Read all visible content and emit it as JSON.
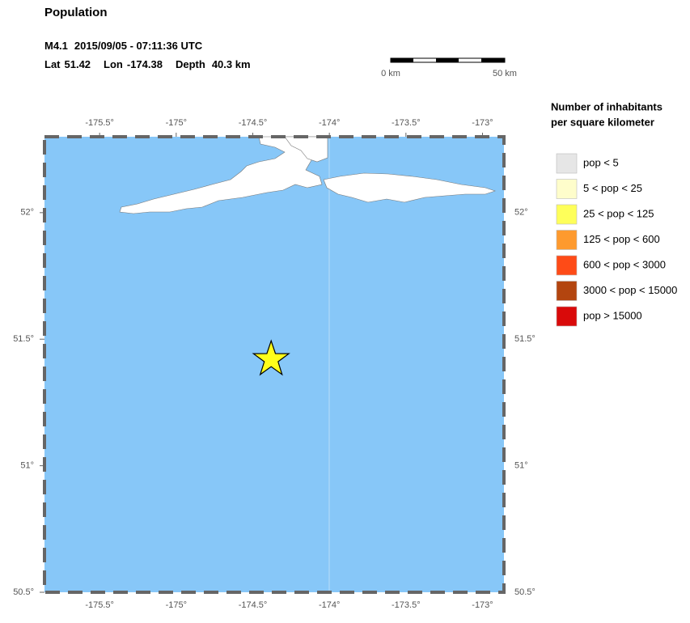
{
  "header": {
    "title": "Population",
    "magnitude": "M4.1",
    "datetime": "2015/09/05 - 07:11:36 UTC",
    "lat_label": "Lat",
    "lon_label": "Lon",
    "depth_label": "Depth",
    "depth": "40.3 km"
  },
  "epicenter": {
    "lat": 51.42,
    "lon": -174.38
  },
  "scale_bar": {
    "start": "0 km",
    "end": "50 km"
  },
  "map": {
    "xlim": [
      -175.86,
      -172.86
    ],
    "ylim": [
      50.5,
      52.3
    ],
    "xticks": [
      {
        "value": -175.5,
        "label": "-175.5°"
      },
      {
        "value": -175,
        "label": "-175°"
      },
      {
        "value": -174.5,
        "label": "-174.5°"
      },
      {
        "value": -174,
        "label": "-174°"
      },
      {
        "value": -173.5,
        "label": "-173.5°"
      },
      {
        "value": -173,
        "label": "-173°"
      }
    ],
    "yticks": [
      {
        "value": 50.5,
        "label": "50.5°"
      },
      {
        "value": 51,
        "label": "51°"
      },
      {
        "value": 51.5,
        "label": "51.5°"
      },
      {
        "value": 52,
        "label": "52°"
      }
    ]
  },
  "legend": {
    "title_1": "Number of inhabitants",
    "title_2": "per square kilometer",
    "items": [
      {
        "label": "pop < 5",
        "color": "#e6e6e6"
      },
      {
        "label": "5 < pop < 25",
        "color": "#fefdcb"
      },
      {
        "label": "25 < pop < 125",
        "color": "#feff5a"
      },
      {
        "label": "125 < pop < 600",
        "color": "#fe9a2e"
      },
      {
        "label": "600 < pop < 3000",
        "color": "#fe4b17"
      },
      {
        "label": "3000 < pop < 15000",
        "color": "#b3450f"
      },
      {
        "label": "pop > 15000",
        "color": "#d90a0a"
      }
    ]
  }
}
